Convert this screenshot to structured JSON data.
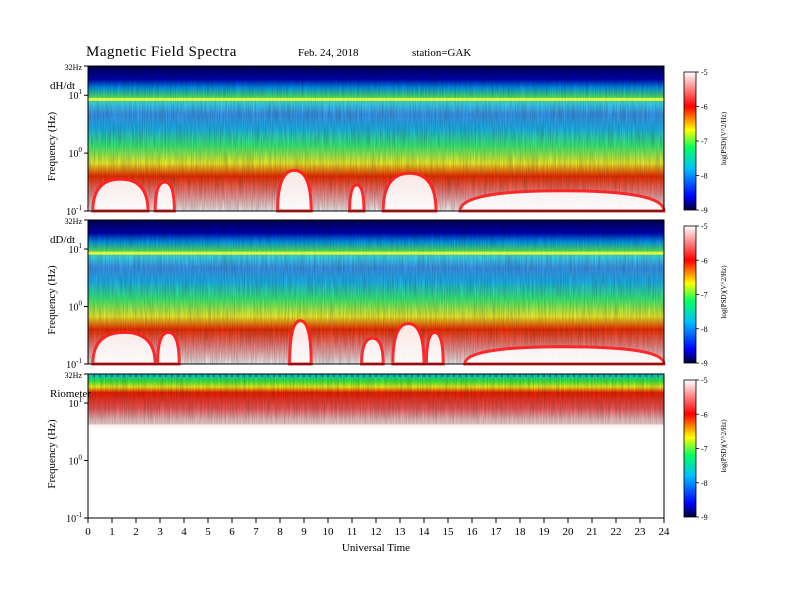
{
  "header": {
    "title": "Magnetic  Field  Spectra",
    "date": "Feb. 24, 2018",
    "station": "station=GAK"
  },
  "chart_data": [
    {
      "type": "heatmap",
      "panel_label": "dH/dt",
      "ylabel": "Frequency  (Hz)",
      "ytick_labels": [
        "32Hz",
        "10",
        "10",
        "10"
      ],
      "ytick_exponents": [
        "",
        "1",
        "0",
        "-1"
      ],
      "ytick_values": [
        32,
        10,
        1,
        0.1
      ],
      "yscale": "log",
      "ylim": [
        0.1,
        32
      ],
      "x": [
        0,
        24
      ],
      "description_of_features": "broadband low-frequency power with peaks near 8.5 UT and 13 UT; persistent band near 6 Hz"
    },
    {
      "type": "heatmap",
      "panel_label": "dD/dt",
      "ylabel": "Frequency  (Hz)",
      "ytick_labels": [
        "32Hz",
        "10",
        "10",
        "10"
      ],
      "ytick_exponents": [
        "",
        "1",
        "0",
        "-1"
      ],
      "ytick_values": [
        32,
        10,
        1,
        0.1
      ],
      "yscale": "log",
      "ylim": [
        0.1,
        32
      ]
    },
    {
      "type": "heatmap",
      "panel_label": "Riometer",
      "ylabel": "Frequency  (Hz)",
      "ytick_labels": [
        "32Hz",
        "10",
        "10",
        "10"
      ],
      "ytick_exponents": [
        "",
        "1",
        "0",
        "-1"
      ],
      "ytick_values": [
        32,
        10,
        1,
        0.1
      ],
      "yscale": "log",
      "ylim": [
        0.1,
        32
      ]
    }
  ],
  "xaxis": {
    "label": "Universal  Time",
    "ticks": [
      "0",
      "1",
      "2",
      "3",
      "4",
      "5",
      "6",
      "7",
      "8",
      "9",
      "10",
      "11",
      "12",
      "13",
      "14",
      "15",
      "16",
      "17",
      "18",
      "19",
      "20",
      "21",
      "22",
      "23",
      "24"
    ],
    "xlim": [
      0,
      24
    ]
  },
  "colorbar": {
    "label": "log(PSD)(V^2/Hz)",
    "tick_labels": [
      "-5",
      "-6",
      "-7",
      "-8",
      "-9"
    ],
    "range": [
      -9,
      -5
    ],
    "colors": [
      "#000030",
      "#0000ff",
      "#00c0ff",
      "#00ff60",
      "#ffff00",
      "#ff0000",
      "#ffffff"
    ]
  }
}
